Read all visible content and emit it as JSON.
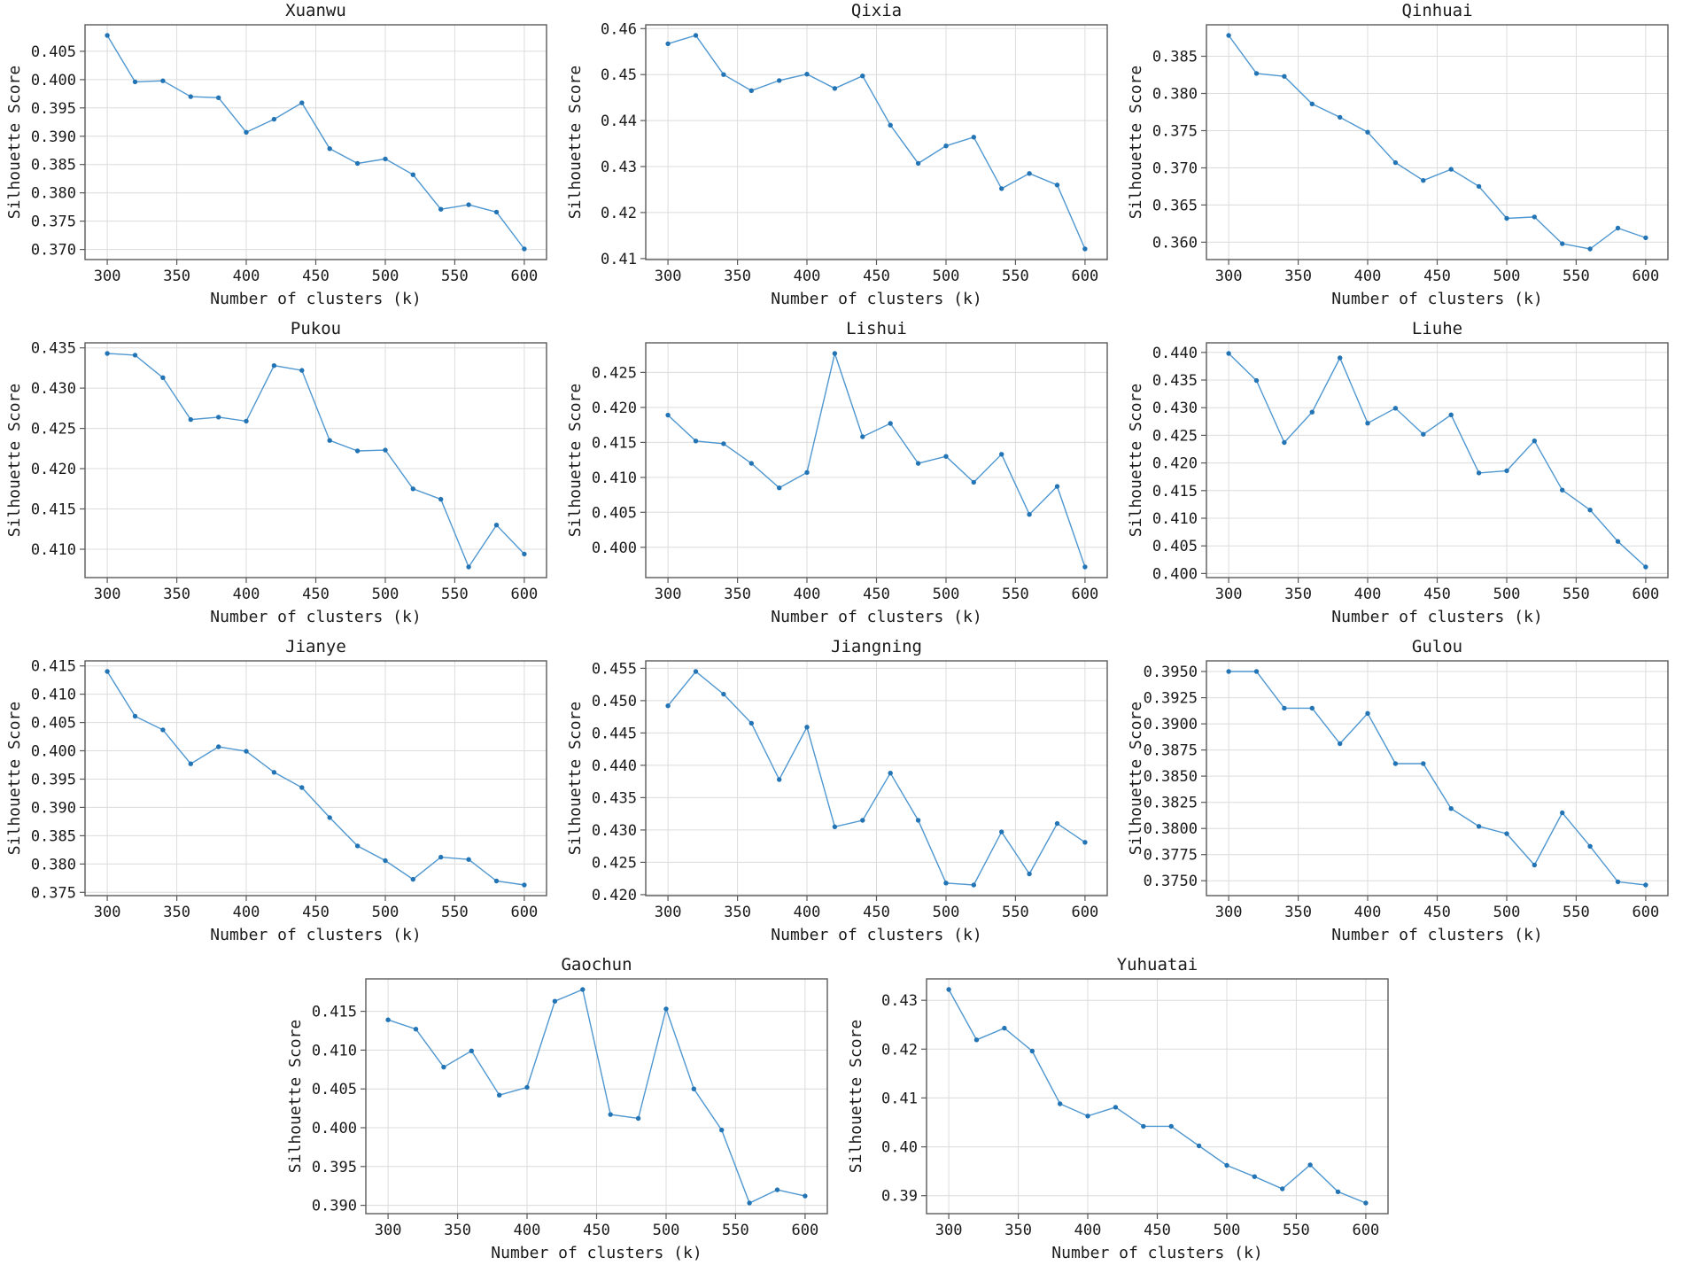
{
  "chart_defaults": {
    "xlabel": "Number of clusters (k)",
    "ylabel": "Silhouette Score",
    "x_ticks": [
      300,
      350,
      400,
      450,
      500,
      550,
      600
    ],
    "xlim": [
      284,
      616
    ],
    "line_color": "#4f97d0",
    "marker_color": "#2374b5",
    "grid_color": "#dcdcdc",
    "spine_color": "#5a5a5a",
    "text_color": "#1a1a1a",
    "background": "#ffffff",
    "grid": true,
    "legend_position": "none"
  },
  "chart_data": [
    {
      "type": "line",
      "title": "Xuanwu",
      "x": [
        300,
        320,
        340,
        360,
        380,
        400,
        420,
        440,
        460,
        480,
        500,
        520,
        540,
        560,
        580,
        600
      ],
      "values": [
        0.4078,
        0.3996,
        0.3998,
        0.397,
        0.3968,
        0.3907,
        0.393,
        0.3959,
        0.3878,
        0.3852,
        0.386,
        0.3832,
        0.3771,
        0.3779,
        0.3766,
        0.3701
      ],
      "yticks": {
        "min": 0.37,
        "max": 0.405,
        "step": 0.005,
        "decimals": 3
      }
    },
    {
      "type": "line",
      "title": "Qixia",
      "x": [
        300,
        320,
        340,
        360,
        380,
        400,
        420,
        440,
        460,
        480,
        500,
        520,
        540,
        560,
        580,
        600
      ],
      "values": [
        0.4567,
        0.4585,
        0.45,
        0.4465,
        0.4487,
        0.4501,
        0.447,
        0.4497,
        0.439,
        0.4307,
        0.4345,
        0.4364,
        0.4252,
        0.4285,
        0.426,
        0.4121
      ],
      "yticks": {
        "min": 0.41,
        "max": 0.46,
        "step": 0.01,
        "decimals": 2
      }
    },
    {
      "type": "line",
      "title": "Qinhuai",
      "x": [
        300,
        320,
        340,
        360,
        380,
        400,
        420,
        440,
        460,
        480,
        500,
        520,
        540,
        560,
        580,
        600
      ],
      "values": [
        0.3878,
        0.3827,
        0.3823,
        0.3786,
        0.3768,
        0.3748,
        0.3707,
        0.3683,
        0.3698,
        0.3675,
        0.3632,
        0.3634,
        0.3598,
        0.3591,
        0.3619,
        0.3606
      ],
      "yticks": {
        "min": 0.36,
        "max": 0.385,
        "step": 0.005,
        "decimals": 3
      }
    },
    {
      "type": "line",
      "title": "Pukou",
      "x": [
        300,
        320,
        340,
        360,
        380,
        400,
        420,
        440,
        460,
        480,
        500,
        520,
        540,
        560,
        580,
        600
      ],
      "values": [
        0.4343,
        0.4341,
        0.4313,
        0.4261,
        0.4264,
        0.4259,
        0.4328,
        0.4322,
        0.4235,
        0.4222,
        0.4223,
        0.4175,
        0.4162,
        0.4078,
        0.413,
        0.4094
      ],
      "yticks": {
        "min": 0.41,
        "max": 0.435,
        "step": 0.005,
        "decimals": 3
      }
    },
    {
      "type": "line",
      "title": "Lishui",
      "x": [
        300,
        320,
        340,
        360,
        380,
        400,
        420,
        440,
        460,
        480,
        500,
        520,
        540,
        560,
        580,
        600
      ],
      "values": [
        0.4189,
        0.4152,
        0.4148,
        0.412,
        0.4085,
        0.4107,
        0.4277,
        0.4158,
        0.4177,
        0.412,
        0.413,
        0.4093,
        0.4133,
        0.4047,
        0.4087,
        0.3972
      ],
      "yticks": {
        "min": 0.4,
        "max": 0.425,
        "step": 0.005,
        "decimals": 3
      }
    },
    {
      "type": "line",
      "title": "Liuhe",
      "x": [
        300,
        320,
        340,
        360,
        380,
        400,
        420,
        440,
        460,
        480,
        500,
        520,
        540,
        560,
        580,
        600
      ],
      "values": [
        0.4398,
        0.4349,
        0.4237,
        0.4292,
        0.439,
        0.4272,
        0.4299,
        0.4252,
        0.4287,
        0.4182,
        0.4186,
        0.424,
        0.4151,
        0.4115,
        0.4058,
        0.4012
      ],
      "yticks": {
        "min": 0.4,
        "max": 0.44,
        "step": 0.005,
        "decimals": 3
      }
    },
    {
      "type": "line",
      "title": "Jianye",
      "x": [
        300,
        320,
        340,
        360,
        380,
        400,
        420,
        440,
        460,
        480,
        500,
        520,
        540,
        560,
        580,
        600
      ],
      "values": [
        0.414,
        0.4061,
        0.4037,
        0.3977,
        0.4007,
        0.3999,
        0.3962,
        0.3935,
        0.3882,
        0.3832,
        0.3806,
        0.3773,
        0.3812,
        0.3808,
        0.377,
        0.3763
      ],
      "yticks": {
        "min": 0.375,
        "max": 0.415,
        "step": 0.005,
        "decimals": 3
      }
    },
    {
      "type": "line",
      "title": "Jiangning",
      "x": [
        300,
        320,
        340,
        360,
        380,
        400,
        420,
        440,
        460,
        480,
        500,
        520,
        540,
        560,
        580,
        600
      ],
      "values": [
        0.4492,
        0.4545,
        0.451,
        0.4465,
        0.4378,
        0.4459,
        0.4305,
        0.4315,
        0.4388,
        0.4315,
        0.4218,
        0.4215,
        0.4297,
        0.4232,
        0.431,
        0.4281
      ],
      "yticks": {
        "min": 0.42,
        "max": 0.455,
        "step": 0.005,
        "decimals": 3
      }
    },
    {
      "type": "line",
      "title": "Gulou",
      "x": [
        300,
        320,
        340,
        360,
        380,
        400,
        420,
        440,
        460,
        480,
        500,
        520,
        540,
        560,
        580,
        600
      ],
      "values": [
        0.395,
        0.395,
        0.3915,
        0.3915,
        0.3881,
        0.391,
        0.3862,
        0.3862,
        0.3819,
        0.3802,
        0.3795,
        0.3765,
        0.3815,
        0.3783,
        0.3749,
        0.3746
      ],
      "yticks": {
        "min": 0.375,
        "max": 0.395,
        "step": 0.0025,
        "decimals": 4
      }
    },
    {
      "type": "line",
      "title": "Gaochun",
      "x": [
        300,
        320,
        340,
        360,
        380,
        400,
        420,
        440,
        460,
        480,
        500,
        520,
        540,
        560,
        580,
        600
      ],
      "values": [
        0.4139,
        0.4127,
        0.4078,
        0.4099,
        0.4042,
        0.4052,
        0.4163,
        0.4178,
        0.4017,
        0.4012,
        0.4153,
        0.405,
        0.3997,
        0.3903,
        0.392,
        0.3912
      ],
      "yticks": {
        "min": 0.39,
        "max": 0.415,
        "step": 0.005,
        "decimals": 3
      }
    },
    {
      "type": "line",
      "title": "Yuhuatai",
      "x": [
        300,
        320,
        340,
        360,
        380,
        400,
        420,
        440,
        460,
        480,
        500,
        520,
        540,
        560,
        580,
        600
      ],
      "values": [
        0.4322,
        0.4219,
        0.4243,
        0.4196,
        0.4088,
        0.4063,
        0.4081,
        0.4042,
        0.4042,
        0.4002,
        0.3962,
        0.3939,
        0.3914,
        0.3963,
        0.3908,
        0.3885
      ],
      "yticks": {
        "min": 0.39,
        "max": 0.43,
        "step": 0.01,
        "decimals": 2
      }
    }
  ]
}
